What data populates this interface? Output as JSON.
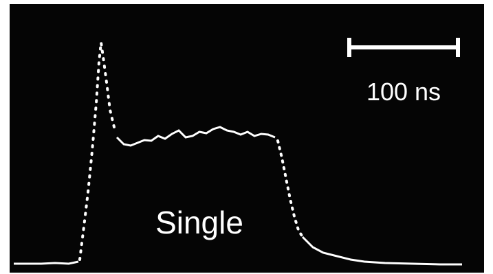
{
  "scale_bar": {
    "label": "100 ns"
  },
  "trace_label": "Single"
}
